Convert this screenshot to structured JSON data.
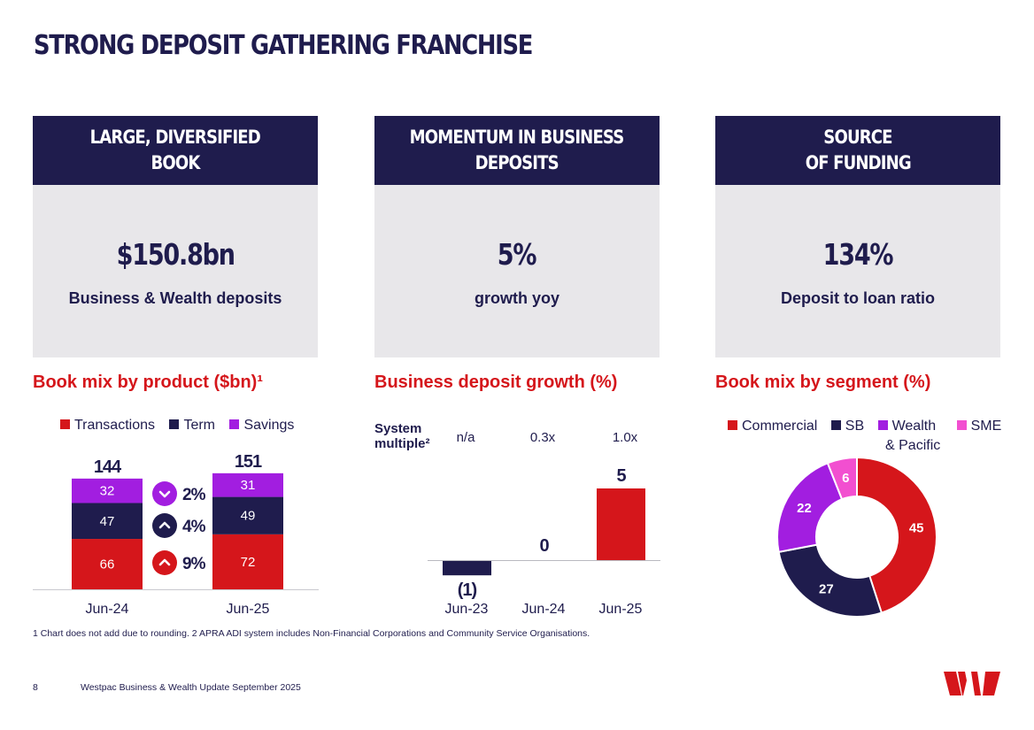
{
  "title": "STRONG DEPOSIT GATHERING FRANCHISE",
  "panels": [
    {
      "head1": "LARGE, DIVERSIFIED",
      "head2": "BOOK",
      "value": "$150.8bn",
      "label": "Business & Wealth deposits"
    },
    {
      "head1": "MOMENTUM IN BUSINESS",
      "head2": "DEPOSITS",
      "value": "5%",
      "label": "growth yoy"
    },
    {
      "head1": "SOURCE",
      "head2": "OF FUNDING",
      "value": "134%",
      "label": "Deposit to loan ratio"
    }
  ],
  "section_titles": {
    "product": "Book mix by product ($bn)¹",
    "growth": "Business deposit growth (%)",
    "segment": "Book mix by segment (%)"
  },
  "colors": {
    "navy": "#1f1c4d",
    "red": "#d5161b",
    "purple": "#a21ee0",
    "pink": "#f24fd0",
    "panel_bg": "#e8e7ea"
  },
  "system_multiple": {
    "label_line1": "System",
    "label_line2": "multiple²",
    "values": [
      "n/a",
      "0.3x",
      "1.0x"
    ]
  },
  "change_badges": [
    {
      "direction": "down",
      "text": "2%",
      "color": "#a21ee0",
      "icon": "chevron-down-icon"
    },
    {
      "direction": "up",
      "text": "4%",
      "color": "#1f1c4d",
      "icon": "chevron-up-icon"
    },
    {
      "direction": "up",
      "text": "9%",
      "color": "#d5161b",
      "icon": "chevron-up-icon"
    }
  ],
  "chart_data": [
    {
      "type": "bar",
      "stacked": true,
      "categories": [
        "Jun-24",
        "Jun-25"
      ],
      "series": [
        {
          "name": "Transactions",
          "values": [
            66,
            72
          ],
          "color": "#d5161b"
        },
        {
          "name": "Term",
          "values": [
            47,
            49
          ],
          "color": "#1f1c4d"
        },
        {
          "name": "Savings",
          "values": [
            32,
            31
          ],
          "color": "#a21ee0"
        }
      ],
      "totals": [
        "144",
        "151"
      ],
      "legend": "top"
    },
    {
      "type": "bar",
      "categories": [
        "Jun-23",
        "Jun-24",
        "Jun-25"
      ],
      "values": [
        -1,
        0,
        5
      ],
      "value_labels": [
        "(1)",
        "0",
        "5"
      ],
      "bar_colors": [
        "#1f1c4d",
        "#1f1c4d",
        "#d5161b"
      ]
    },
    {
      "type": "pie",
      "donut": true,
      "slices": [
        {
          "name": "Commercial",
          "value": 45,
          "color": "#d5161b"
        },
        {
          "name": "SB",
          "value": 27,
          "color": "#1f1c4d"
        },
        {
          "name": "Wealth & Pacific",
          "value": 22,
          "color": "#a21ee0"
        },
        {
          "name": "SME",
          "value": 6,
          "color": "#f24fd0"
        }
      ],
      "legend_labels": [
        "Commercial",
        "SB",
        "Wealth",
        "& Pacific",
        "SME"
      ],
      "legend": "top"
    }
  ],
  "footnote": "1 Chart does not add due to rounding. 2 APRA ADI system includes Non-Financial Corporations and Community Service Organisations.",
  "page_number": "8",
  "footer_text": "Westpac Business & Wealth Update September 2025"
}
